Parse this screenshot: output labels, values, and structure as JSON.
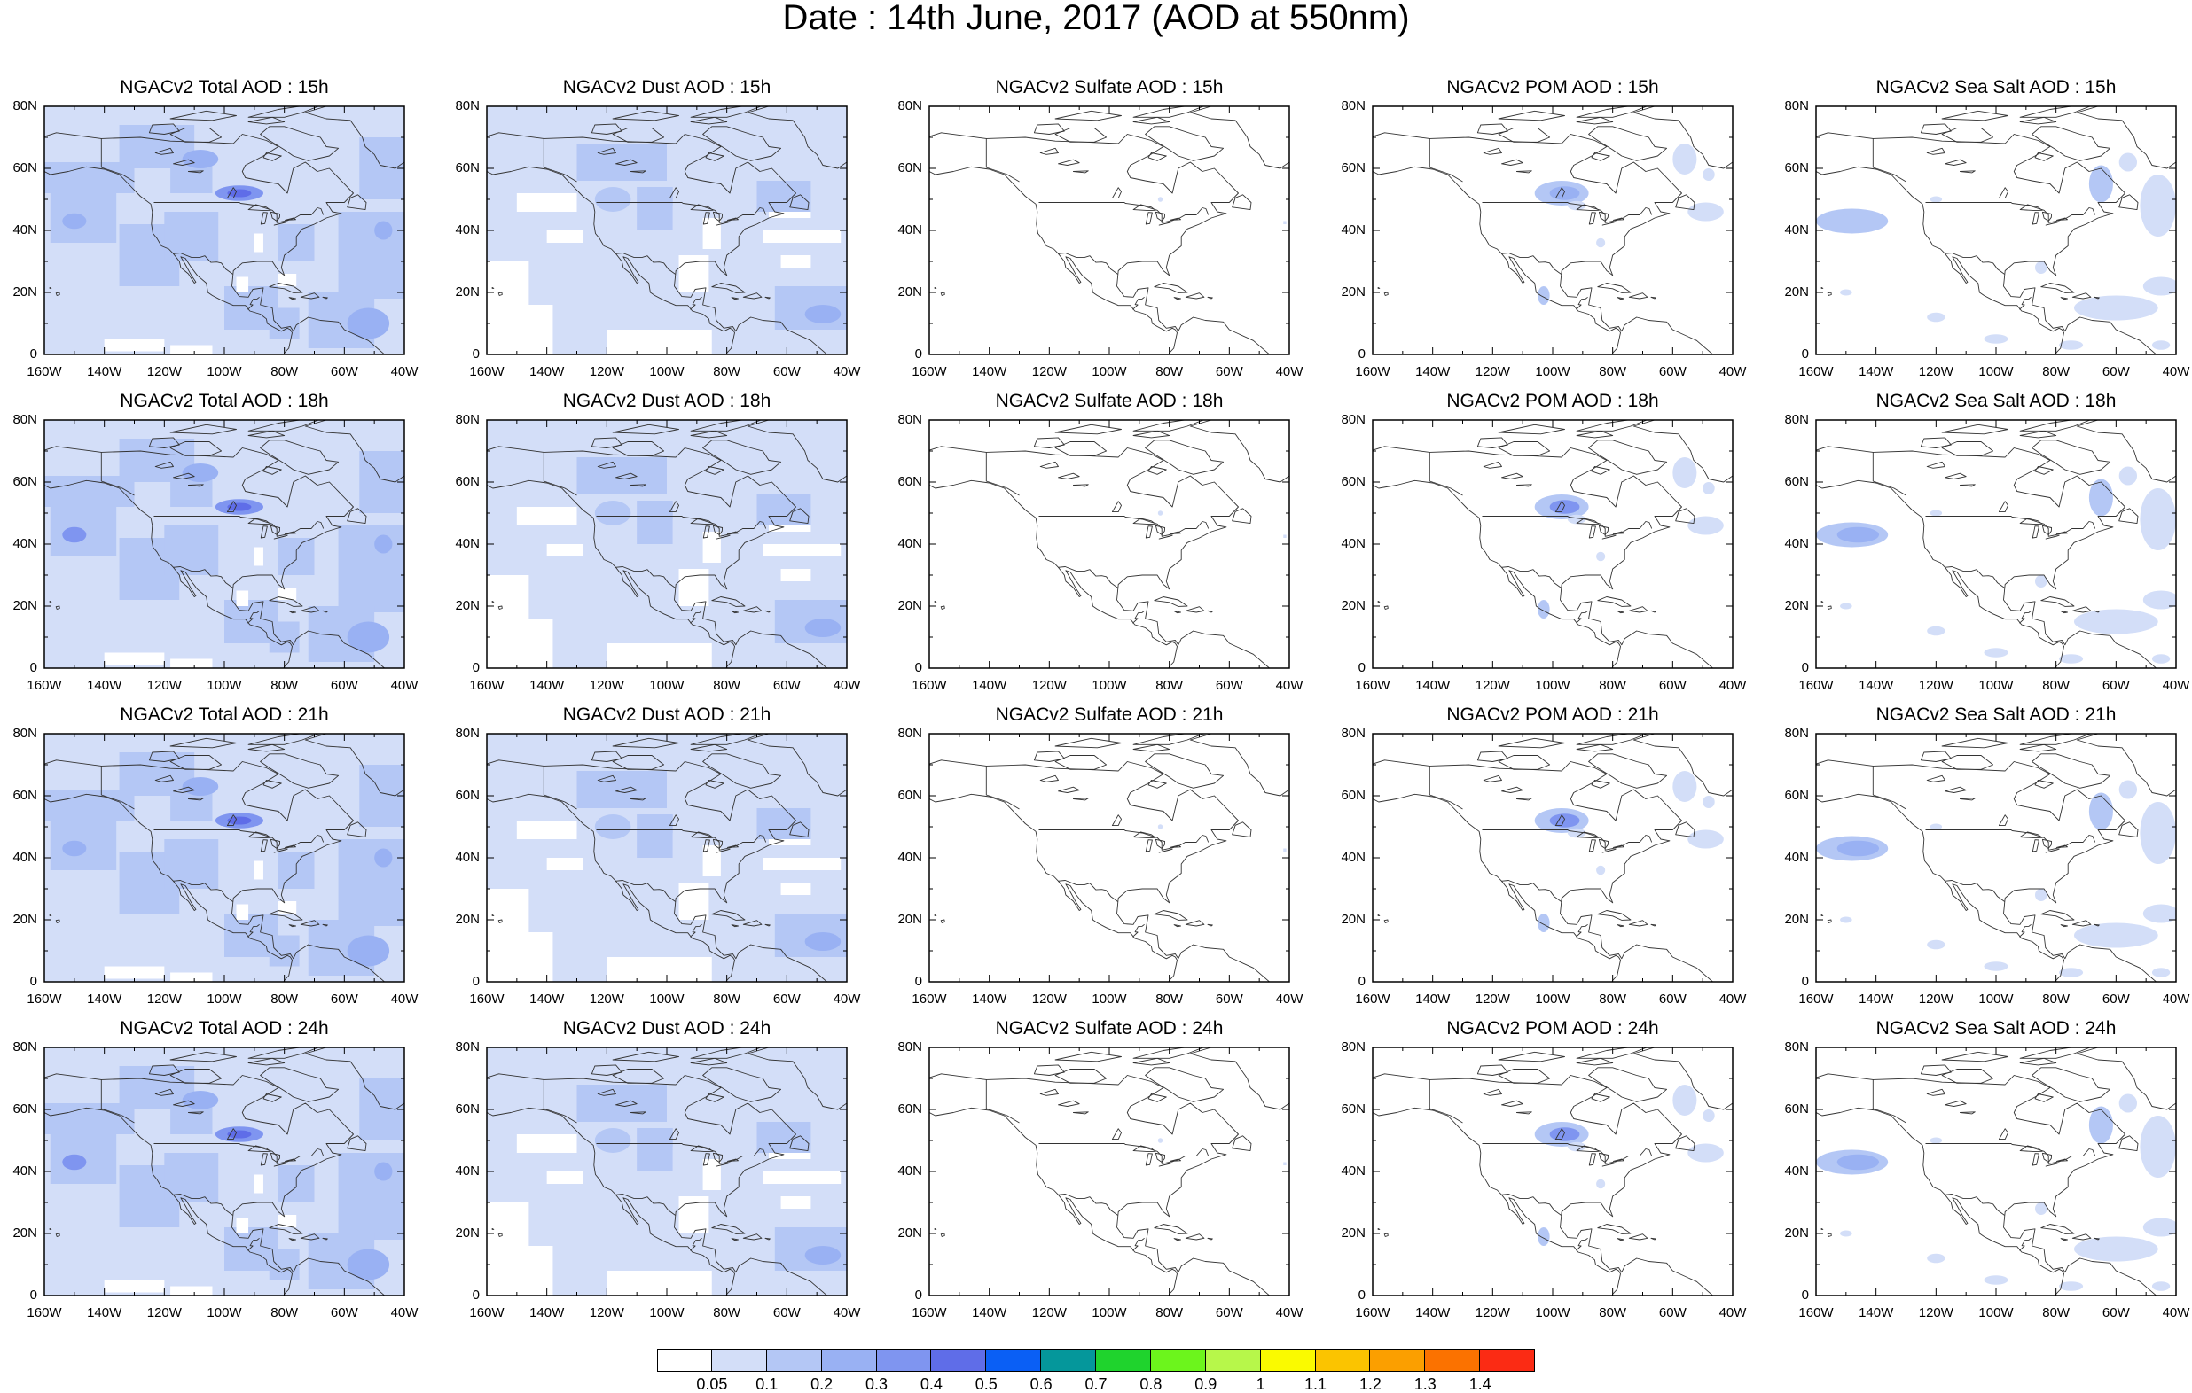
{
  "title": "Date : 14th June, 2017 (AOD at 550nm)",
  "x_ticks": [
    "160W",
    "140W",
    "120W",
    "100W",
    "80W",
    "60W",
    "40W"
  ],
  "y_ticks": [
    "80N",
    "60N",
    "40N",
    "20N",
    "0"
  ],
  "rows": [
    {
      "time": "15h",
      "titles": [
        "NGACv2 Total AOD : 15h",
        "NGACv2 Dust AOD : 15h",
        "NGACv2 Sulfate AOD : 15h",
        "NGACv2 POM AOD : 15h",
        "NGACv2 Sea Salt AOD : 15h"
      ]
    },
    {
      "time": "18h",
      "titles": [
        "NGACv2 Total AOD : 18h",
        "NGACv2 Dust AOD : 18h",
        "NGACv2 Sulfate AOD : 18h",
        "NGACv2 POM AOD : 18h",
        "NGACv2 Sea Salt AOD : 18h"
      ]
    },
    {
      "time": "21h",
      "titles": [
        "NGACv2 Total AOD : 21h",
        "NGACv2 Dust AOD : 21h",
        "NGACv2 Sulfate AOD : 21h",
        "NGACv2 POM AOD : 21h",
        "NGACv2 Sea Salt AOD : 21h"
      ]
    },
    {
      "time": "24h",
      "titles": [
        "NGACv2 Total AOD : 24h",
        "NGACv2 Dust AOD : 24h",
        "NGACv2 Sulfate AOD : 24h",
        "NGACv2 POM AOD : 24h",
        "NGACv2 Sea Salt  AOD : 24h"
      ]
    }
  ],
  "colorbar": {
    "labels": [
      "0.05",
      "0.1",
      "0.2",
      "0.3",
      "0.4",
      "0.5",
      "0.6",
      "0.7",
      "0.8",
      "0.9",
      "1",
      "1.1",
      "1.2",
      "1.3",
      "1.4"
    ],
    "colors": [
      "#ffffff",
      "#d3def8",
      "#b4c7f5",
      "#99b1f3",
      "#7f95f0",
      "#5f6de8",
      "#0a5ff5",
      "#05979b",
      "#1fd32d",
      "#6cf51c",
      "#b7f74a",
      "#fafa00",
      "#fbc400",
      "#fb9f00",
      "#fb7200",
      "#fb2b14"
    ]
  },
  "species": [
    "Total",
    "Dust",
    "Sulfate",
    "POM",
    "Sea Salt"
  ],
  "chart_data": {
    "type": "heatmap",
    "title": "Date : 14th June, 2017 (AOD at 550nm)",
    "xlim": [
      -160,
      -40
    ],
    "ylim": [
      0,
      80
    ],
    "x_ticks": [
      "160W",
      "140W",
      "120W",
      "100W",
      "80W",
      "60W",
      "40W"
    ],
    "y_ticks": [
      "80N",
      "60N",
      "40N",
      "20N",
      "0"
    ],
    "legend": "bottom colorbar",
    "levels": [
      0.05,
      0.1,
      0.2,
      0.3,
      0.4,
      0.5,
      0.6,
      0.7,
      0.8,
      0.9,
      1,
      1.1,
      1.2,
      1.3,
      1.4
    ]
  }
}
